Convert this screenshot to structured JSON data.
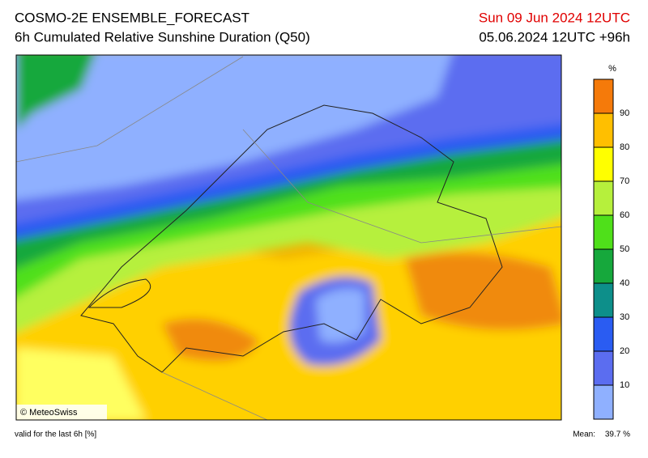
{
  "header": {
    "title": "COSMO-2E ENSEMBLE_FORECAST",
    "subtitle": "6h Cumulated Relative Sunshine Duration (Q50)",
    "valid_date": "Sun 09 Jun 2024 12UTC",
    "run_info": "05.06.2024 12UTC +96h"
  },
  "map": {
    "copyright": "© MeteoSwiss"
  },
  "colorbar": {
    "unit": "%",
    "range": [
      0,
      100
    ],
    "ticks": [
      10,
      20,
      30,
      40,
      50,
      60,
      70,
      80,
      90
    ],
    "colors": [
      "#8fb0ff",
      "#5b6df0",
      "#2a5cf2",
      "#0d8f8a",
      "#16a83c",
      "#4fe01a",
      "#b6f03c",
      "#ffff00",
      "#ffbf00",
      "#f57a0a"
    ]
  },
  "footer": {
    "note": "valid for the last 6h [%]",
    "mean_label": "Mean:",
    "mean_value": "39.7 %"
  }
}
